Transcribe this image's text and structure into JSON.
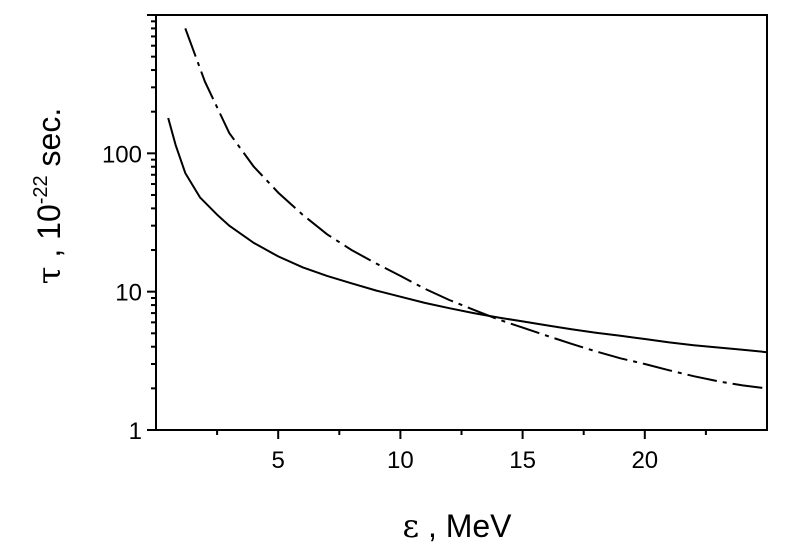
{
  "chart_data": {
    "type": "line",
    "xlabel": "ε , MeV",
    "ylabel": "τ , 10⁻²² sec.",
    "ylabel_parts": {
      "symbol": "τ",
      "sep": " , ",
      "base": "10",
      "exp": "-22",
      "unit": " sec."
    },
    "xlabel_parts": {
      "symbol": "ε",
      "rest": " , MeV"
    },
    "xscale": "linear",
    "yscale": "log",
    "xlim": [
      0,
      25
    ],
    "ylim": [
      1,
      1000
    ],
    "xticks": [
      5,
      10,
      15,
      20
    ],
    "xtick_labels": [
      "5",
      "10",
      "15",
      "20"
    ],
    "yticks": [
      1,
      10,
      100
    ],
    "ytick_labels": [
      "1",
      "10",
      "100"
    ],
    "grid": false,
    "series": [
      {
        "style": "solid",
        "x": [
          0.5,
          0.8,
          1.2,
          1.8,
          2.5,
          3.0,
          4.0,
          5.0,
          6.0,
          7.0,
          8.0,
          9.0,
          10.0,
          11.0,
          12.0,
          13.0,
          14.0,
          15.0,
          16.0,
          17.0,
          18.0,
          19.0,
          20.0,
          21.0,
          22.0,
          23.0,
          24.0,
          25.0
        ],
        "y": [
          180,
          115,
          72,
          48,
          36,
          30,
          22.5,
          18,
          15,
          13,
          11.5,
          10.2,
          9.2,
          8.3,
          7.6,
          7.0,
          6.5,
          6.1,
          5.7,
          5.35,
          5.05,
          4.8,
          4.55,
          4.3,
          4.1,
          3.95,
          3.8,
          3.65
        ]
      },
      {
        "style": "dash-dot",
        "x": [
          1.2,
          2.0,
          3.0,
          4.0,
          5.0,
          6.0,
          7.0,
          8.0,
          9.0,
          10.0,
          11.0,
          12.0,
          13.0,
          14.0,
          15.0,
          16.0,
          17.0,
          18.0,
          19.0,
          20.0,
          21.0,
          22.0,
          23.0,
          24.0,
          25.0
        ],
        "y": [
          800,
          330,
          140,
          80,
          52,
          36,
          26,
          20,
          16,
          13,
          10.5,
          8.7,
          7.4,
          6.3,
          5.5,
          4.8,
          4.2,
          3.7,
          3.3,
          3.0,
          2.7,
          2.45,
          2.25,
          2.1,
          2.0
        ]
      }
    ]
  }
}
